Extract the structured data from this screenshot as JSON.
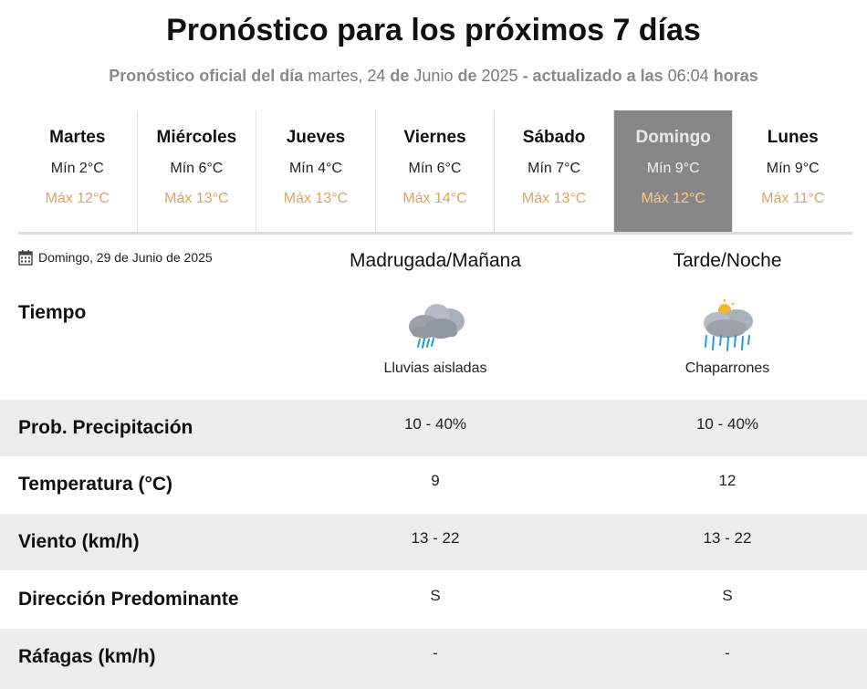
{
  "header": {
    "title": "Pronóstico para los próximos 7 días",
    "subtitle_a": "Pronóstico oficial del día",
    "subtitle_day": "martes, 24",
    "subtitle_de1": "de",
    "subtitle_month": "Junio",
    "subtitle_de2": "de",
    "subtitle_year": "2025",
    "subtitle_b": "- actualizado a las",
    "subtitle_time": "06:04",
    "subtitle_c": "horas"
  },
  "days": [
    {
      "name": "Martes",
      "min": "Mín 2°C",
      "max": "Máx 12°C"
    },
    {
      "name": "Miércoles",
      "min": "Mín 6°C",
      "max": "Máx 13°C"
    },
    {
      "name": "Jueves",
      "min": "Mín 4°C",
      "max": "Máx 13°C"
    },
    {
      "name": "Viernes",
      "min": "Mín 6°C",
      "max": "Máx 14°C"
    },
    {
      "name": "Sábado",
      "min": "Mín 7°C",
      "max": "Máx 13°C"
    },
    {
      "name": "Domingo",
      "min": "Mín 9°C",
      "max": "Máx 12°C"
    },
    {
      "name": "Lunes",
      "min": "Mín 9°C",
      "max": "Máx 11°C"
    }
  ],
  "selected_day_index": 5,
  "detail": {
    "date": "Domingo, 29 de Junio de 2025",
    "col1_header": "Madrugada/Mañana",
    "col2_header": "Tarde/Noche",
    "tiempo_label": "Tiempo",
    "col1_weather": "Lluvias aisladas",
    "col2_weather": "Chaparrones",
    "col1_icon": "cloud-rain-icon",
    "col2_icon": "sun-cloud-showers-icon",
    "rows": [
      {
        "label": "Prob. Precipitación",
        "v1": "10 - 40%",
        "v2": "10 - 40%"
      },
      {
        "label": "Temperatura (°C)",
        "v1": "9",
        "v2": "12"
      },
      {
        "label": "Viento (km/h)",
        "v1": "13 - 22",
        "v2": "13 - 22"
      },
      {
        "label": "Dirección Predominante",
        "v1": "S",
        "v2": "S"
      },
      {
        "label": "Ráfagas (km/h)",
        "v1": "-",
        "v2": "-"
      }
    ]
  },
  "colors": {
    "selected_day_bg": "#878787",
    "max_temp": "#e0a260",
    "row_shade": "#ececec"
  }
}
